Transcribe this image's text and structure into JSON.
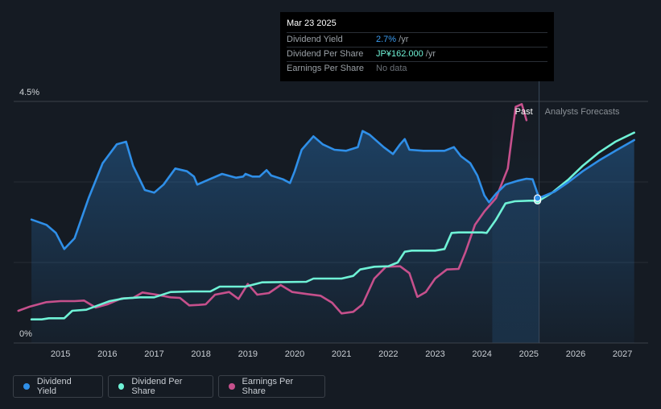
{
  "tooltip": {
    "date": "Mar 23 2025",
    "rows": [
      {
        "label": "Dividend Yield",
        "value": "2.7%",
        "unit": " /yr"
      },
      {
        "label": "Dividend Per Share",
        "value": "JP¥162.000",
        "unit": " /yr"
      },
      {
        "label": "Earnings Per Share",
        "value": "No data",
        "unit": ""
      }
    ]
  },
  "regions": {
    "past_label": "Past",
    "forecast_label": "Analysts Forecasts"
  },
  "legend": [
    {
      "label": "Dividend Yield",
      "color": "#2f8fe8"
    },
    {
      "label": "Dividend Per Share",
      "color": "#6ff2d6"
    },
    {
      "label": "Earnings Per Share",
      "color": "#c6508c"
    }
  ],
  "chart_data": {
    "type": "line",
    "title": "",
    "xlabel": "",
    "ylabel": "",
    "xlim": [
      2014.0,
      2027.25
    ],
    "ylim": [
      0,
      4.5
    ],
    "y_tick_labels": [
      {
        "value": 4.5,
        "label": "4.5%"
      },
      {
        "value": 0,
        "label": "0%"
      }
    ],
    "x_ticks": [
      2015,
      2016,
      2017,
      2018,
      2019,
      2020,
      2021,
      2022,
      2023,
      2024,
      2025,
      2026,
      2027
    ],
    "past_end": 2025.22,
    "forecast_start": 2024.22,
    "series": [
      {
        "name": "Dividend Yield",
        "color": "#2f8fe8",
        "fill": true,
        "points": [
          [
            2014.38,
            2.3
          ],
          [
            2014.7,
            2.2
          ],
          [
            2014.9,
            2.05
          ],
          [
            2015.08,
            1.75
          ],
          [
            2015.3,
            1.95
          ],
          [
            2015.6,
            2.7
          ],
          [
            2015.9,
            3.35
          ],
          [
            2016.2,
            3.7
          ],
          [
            2016.4,
            3.75
          ],
          [
            2016.55,
            3.3
          ],
          [
            2016.8,
            2.85
          ],
          [
            2017.0,
            2.8
          ],
          [
            2017.2,
            2.95
          ],
          [
            2017.45,
            3.25
          ],
          [
            2017.7,
            3.2
          ],
          [
            2017.85,
            3.1
          ],
          [
            2017.92,
            2.95
          ],
          [
            2018.1,
            3.02
          ],
          [
            2018.45,
            3.15
          ],
          [
            2018.75,
            3.08
          ],
          [
            2018.9,
            3.1
          ],
          [
            2018.95,
            3.15
          ],
          [
            2019.1,
            3.1
          ],
          [
            2019.25,
            3.1
          ],
          [
            2019.4,
            3.22
          ],
          [
            2019.5,
            3.12
          ],
          [
            2019.75,
            3.05
          ],
          [
            2019.9,
            2.98
          ],
          [
            2020.0,
            3.2
          ],
          [
            2020.15,
            3.6
          ],
          [
            2020.4,
            3.85
          ],
          [
            2020.6,
            3.7
          ],
          [
            2020.85,
            3.6
          ],
          [
            2021.1,
            3.58
          ],
          [
            2021.35,
            3.65
          ],
          [
            2021.45,
            3.95
          ],
          [
            2021.6,
            3.88
          ],
          [
            2021.9,
            3.65
          ],
          [
            2022.1,
            3.52
          ],
          [
            2022.25,
            3.7
          ],
          [
            2022.35,
            3.8
          ],
          [
            2022.45,
            3.6
          ],
          [
            2022.75,
            3.58
          ],
          [
            2023.0,
            3.58
          ],
          [
            2023.2,
            3.58
          ],
          [
            2023.4,
            3.65
          ],
          [
            2023.55,
            3.48
          ],
          [
            2023.75,
            3.35
          ],
          [
            2023.9,
            3.12
          ],
          [
            2024.05,
            2.75
          ],
          [
            2024.15,
            2.62
          ],
          [
            2024.3,
            2.78
          ],
          [
            2024.5,
            2.95
          ],
          [
            2024.75,
            3.02
          ],
          [
            2024.95,
            3.06
          ],
          [
            2025.08,
            3.05
          ],
          [
            2025.22,
            2.7
          ],
          [
            2025.55,
            2.82
          ],
          [
            2025.85,
            3.0
          ],
          [
            2026.15,
            3.2
          ],
          [
            2026.5,
            3.4
          ],
          [
            2026.85,
            3.58
          ],
          [
            2027.25,
            3.78
          ]
        ]
      },
      {
        "name": "Dividend Per Share",
        "color": "#6ff2d6",
        "fill": false,
        "points": [
          [
            2014.38,
            0.44
          ],
          [
            2014.6,
            0.44
          ],
          [
            2014.75,
            0.46
          ],
          [
            2015.08,
            0.46
          ],
          [
            2015.25,
            0.6
          ],
          [
            2015.55,
            0.62
          ],
          [
            2015.8,
            0.7
          ],
          [
            2016.05,
            0.78
          ],
          [
            2016.35,
            0.83
          ],
          [
            2016.7,
            0.85
          ],
          [
            2017.0,
            0.85
          ],
          [
            2017.35,
            0.95
          ],
          [
            2017.8,
            0.96
          ],
          [
            2018.2,
            0.96
          ],
          [
            2018.4,
            1.05
          ],
          [
            2018.95,
            1.05
          ],
          [
            2019.3,
            1.13
          ],
          [
            2020.25,
            1.14
          ],
          [
            2020.4,
            1.2
          ],
          [
            2021.0,
            1.2
          ],
          [
            2021.25,
            1.25
          ],
          [
            2021.4,
            1.37
          ],
          [
            2021.7,
            1.42
          ],
          [
            2022.0,
            1.43
          ],
          [
            2022.2,
            1.5
          ],
          [
            2022.35,
            1.7
          ],
          [
            2022.5,
            1.72
          ],
          [
            2023.0,
            1.72
          ],
          [
            2023.2,
            1.75
          ],
          [
            2023.35,
            2.05
          ],
          [
            2023.5,
            2.06
          ],
          [
            2024.0,
            2.06
          ],
          [
            2024.1,
            2.05
          ],
          [
            2024.3,
            2.3
          ],
          [
            2024.5,
            2.6
          ],
          [
            2024.7,
            2.64
          ],
          [
            2025.0,
            2.65
          ],
          [
            2025.22,
            2.65
          ],
          [
            2025.5,
            2.8
          ],
          [
            2025.85,
            3.05
          ],
          [
            2026.15,
            3.3
          ],
          [
            2026.5,
            3.55
          ],
          [
            2026.85,
            3.75
          ],
          [
            2027.25,
            3.92
          ]
        ]
      },
      {
        "name": "Earnings Per Share",
        "color": "#c6508c",
        "fill": false,
        "points": [
          [
            2014.1,
            0.6
          ],
          [
            2014.35,
            0.68
          ],
          [
            2014.7,
            0.76
          ],
          [
            2015.0,
            0.78
          ],
          [
            2015.3,
            0.78
          ],
          [
            2015.5,
            0.79
          ],
          [
            2015.75,
            0.66
          ],
          [
            2016.0,
            0.72
          ],
          [
            2016.3,
            0.83
          ],
          [
            2016.55,
            0.84
          ],
          [
            2016.75,
            0.94
          ],
          [
            2017.05,
            0.9
          ],
          [
            2017.35,
            0.85
          ],
          [
            2017.55,
            0.84
          ],
          [
            2017.75,
            0.7
          ],
          [
            2017.95,
            0.71
          ],
          [
            2018.1,
            0.72
          ],
          [
            2018.3,
            0.9
          ],
          [
            2018.6,
            0.95
          ],
          [
            2018.8,
            0.82
          ],
          [
            2019.0,
            1.1
          ],
          [
            2019.2,
            0.9
          ],
          [
            2019.45,
            0.93
          ],
          [
            2019.7,
            1.08
          ],
          [
            2019.95,
            0.95
          ],
          [
            2020.2,
            0.92
          ],
          [
            2020.55,
            0.88
          ],
          [
            2020.8,
            0.75
          ],
          [
            2021.0,
            0.55
          ],
          [
            2021.25,
            0.58
          ],
          [
            2021.45,
            0.72
          ],
          [
            2021.7,
            1.2
          ],
          [
            2021.95,
            1.42
          ],
          [
            2022.25,
            1.43
          ],
          [
            2022.45,
            1.3
          ],
          [
            2022.62,
            0.86
          ],
          [
            2022.8,
            0.95
          ],
          [
            2023.0,
            1.2
          ],
          [
            2023.25,
            1.37
          ],
          [
            2023.5,
            1.38
          ],
          [
            2023.65,
            1.7
          ],
          [
            2023.85,
            2.2
          ],
          [
            2024.05,
            2.45
          ],
          [
            2024.3,
            2.7
          ],
          [
            2024.55,
            3.25
          ],
          [
            2024.72,
            4.4
          ],
          [
            2024.85,
            4.45
          ],
          [
            2024.95,
            4.15
          ]
        ]
      }
    ]
  }
}
